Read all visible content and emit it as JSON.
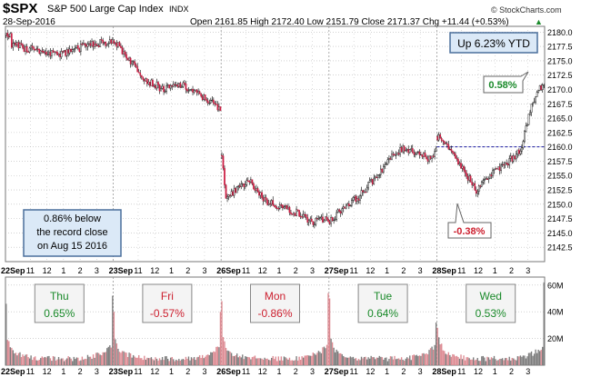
{
  "header": {
    "symbol": "$SPX",
    "name": "S&P 500 Large Cap Index",
    "exchange": "INDX",
    "date": "28-Sep-2016",
    "ohlc_text": "Open 2161.85  High 2172.40  Low 2151.79  Close 2171.37  Chg +11.44 (+0.53%)",
    "change_marker": "▲",
    "watermark": "© StockCharts.com"
  },
  "colors": {
    "up": "#ffffff",
    "down": "#cc1f44",
    "wick": "#000000",
    "grid": "#b8b8b8",
    "vol_up": "#7c7c7c",
    "vol_down": "#dd8a92",
    "pos_text": "#1a8a2a",
    "neg_text": "#cc1f2e",
    "ref_line": "#1a1aa0",
    "callout_border": "#4a6f9c",
    "callout_bg": "#dbe9f7",
    "day_bg": "#f4f4f4"
  },
  "annotations": {
    "ytd": "Up 6.23% YTD",
    "record": [
      "0.86% below",
      "the record close",
      "on Aug 15 2016"
    ],
    "gain_label": "0.58%",
    "drop_label": "-0.38%"
  },
  "day_boxes": [
    {
      "day": "Thu",
      "pct": "0.65%",
      "dir": "up"
    },
    {
      "day": "Fri",
      "pct": "-0.57%",
      "dir": "down"
    },
    {
      "day": "Mon",
      "pct": "-0.86%",
      "dir": "down"
    },
    {
      "day": "Tue",
      "pct": "0.64%",
      "dir": "up"
    },
    {
      "day": "Wed",
      "pct": "0.53%",
      "dir": "up"
    }
  ],
  "chart_data": {
    "type": "candlestick",
    "interval": "5-minute",
    "price_axis": {
      "ylim": [
        2140,
        2181
      ],
      "ticks": [
        "2180.0",
        "2177.5",
        "2175.0",
        "2172.5",
        "2170.0",
        "2167.5",
        "2165.0",
        "2162.5",
        "2160.0",
        "2157.5",
        "2155.0",
        "2152.5",
        "2150.0",
        "2147.5",
        "2145.0",
        "2142.5"
      ],
      "reference_line": {
        "label": "2160.0",
        "from_day_index": 4
      }
    },
    "volume_axis": {
      "ylim": [
        0,
        66
      ],
      "ticks": [
        "60M",
        "40M",
        "20M"
      ]
    },
    "x_labels": [
      "22Sep",
      "11",
      "12",
      "1",
      "2",
      "3",
      "23Sep",
      "11",
      "12",
      "1",
      "2",
      "3",
      "26Sep",
      "11",
      "12",
      "1",
      "2",
      "3",
      "27Sep",
      "11",
      "12",
      "1",
      "2",
      "3",
      "28Sep",
      "11",
      "12",
      "1",
      "2",
      "3"
    ],
    "days": [
      {
        "label": "22Sep",
        "keys": [
          [
            2179.5,
            3
          ],
          [
            2177.8,
            4
          ],
          [
            2177.0,
            16
          ],
          [
            2176.6,
            28
          ],
          [
            2176.2,
            40
          ],
          [
            2177.2,
            52
          ],
          [
            2177.9,
            64
          ],
          [
            2178.5,
            78
          ]
        ],
        "vol_open": 46,
        "vol_close": 52
      },
      {
        "label": "23Sep",
        "keys": [
          [
            2178.5,
            0
          ],
          [
            2175.0,
            12
          ],
          [
            2171.5,
            24
          ],
          [
            2170.0,
            36
          ],
          [
            2170.8,
            48
          ],
          [
            2169.3,
            60
          ],
          [
            2167.5,
            72
          ],
          [
            2166.0,
            78
          ]
        ],
        "vol_open": 40,
        "vol_close": 40
      },
      {
        "label": "26Sep",
        "keys": [
          [
            2158.5,
            0
          ],
          [
            2150.5,
            3
          ],
          [
            2152.5,
            10
          ],
          [
            2154.0,
            20
          ],
          [
            2150.5,
            32
          ],
          [
            2149.5,
            44
          ],
          [
            2148.3,
            56
          ],
          [
            2146.8,
            66
          ],
          [
            2147.7,
            78
          ]
        ],
        "vol_open": 48,
        "vol_close": 54
      },
      {
        "label": "27Sep",
        "keys": [
          [
            2147.0,
            0
          ],
          [
            2149.5,
            10
          ],
          [
            2151.5,
            22
          ],
          [
            2155.0,
            34
          ],
          [
            2158.0,
            44
          ],
          [
            2159.8,
            54
          ],
          [
            2159.0,
            64
          ],
          [
            2158.0,
            72
          ],
          [
            2159.2,
            78
          ]
        ],
        "vol_open": 50,
        "vol_close": 32
      },
      {
        "label": "28Sep",
        "keys": [
          [
            2161.8,
            0
          ],
          [
            2159.5,
            8
          ],
          [
            2155.5,
            20
          ],
          [
            2152.5,
            28
          ],
          [
            2155.5,
            40
          ],
          [
            2157.5,
            52
          ],
          [
            2159.5,
            60
          ],
          [
            2167.0,
            68
          ],
          [
            2170.3,
            74
          ],
          [
            2171.37,
            78
          ]
        ],
        "vol_open": 28,
        "vol_close": 62
      }
    ]
  }
}
